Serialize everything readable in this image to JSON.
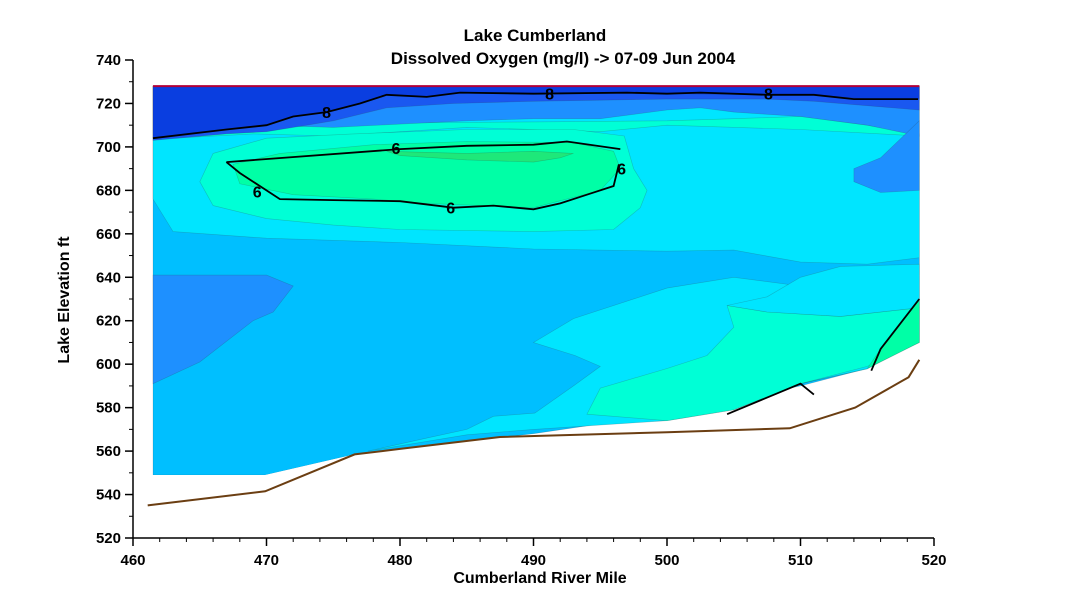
{
  "chart_data": {
    "type": "contour",
    "title": "Lake Cumberland",
    "subtitle": "Dissolved Oxygen (mg/l) -> 07-09 Jun 2004",
    "xlabel": "Cumberland River Mile",
    "ylabel": "Lake  Elevation  ft",
    "xlim": [
      460,
      520
    ],
    "ylim": [
      520,
      740
    ],
    "x_ticks": [
      "460",
      "470",
      "480",
      "490",
      "500",
      "510",
      "520"
    ],
    "y_ticks": [
      "520",
      "540",
      "560",
      "580",
      "600",
      "620",
      "640",
      "660",
      "680",
      "700",
      "720",
      "740"
    ],
    "grid": false,
    "water_surface_elevation": 728,
    "bottom_profile": [
      [
        461.1,
        535
      ],
      [
        469.9,
        541.5
      ],
      [
        476.6,
        558.5
      ],
      [
        480,
        561
      ],
      [
        487.5,
        566.5
      ],
      [
        500,
        568.7
      ],
      [
        509.2,
        570.5
      ],
      [
        514.1,
        580
      ],
      [
        518.1,
        594
      ],
      [
        518.9,
        602
      ]
    ],
    "color_levels": {
      "very_low": "#00bfff",
      "low": "#00e5ff",
      "mid": "#00ffd6",
      "mid_high": "#00ffa6",
      "high": "#1ee87a",
      "surface_2": "#1e90ff",
      "surface_1": "#1a58f0",
      "surface_top": "#0a3ee0"
    },
    "contour_lines": [
      {
        "label": "8",
        "points": [
          [
            461.5,
            704
          ],
          [
            467,
            708
          ],
          [
            470,
            710
          ],
          [
            472,
            714
          ],
          [
            474.5,
            716
          ],
          [
            477,
            720
          ],
          [
            479,
            724
          ],
          [
            482,
            723
          ],
          [
            484.5,
            725
          ],
          [
            490,
            724.5
          ],
          [
            497,
            725
          ],
          [
            500,
            724.5
          ],
          [
            502.5,
            725
          ],
          [
            507.5,
            724
          ],
          [
            511,
            724
          ],
          [
            514,
            722
          ],
          [
            518.8,
            722
          ]
        ]
      },
      {
        "label": "6",
        "points": [
          [
            467,
            693
          ],
          [
            480,
            699
          ],
          [
            485,
            700.5
          ],
          [
            490,
            701
          ],
          [
            492.5,
            702.5
          ],
          [
            496.5,
            699
          ]
        ]
      },
      {
        "label": "6",
        "points": [
          [
            467,
            693
          ],
          [
            468,
            688
          ],
          [
            470,
            680
          ],
          [
            471,
            676
          ],
          [
            475,
            675.5
          ],
          [
            480,
            675
          ],
          [
            484,
            672
          ],
          [
            487,
            673
          ],
          [
            490,
            671.3
          ],
          [
            492,
            674
          ],
          [
            494,
            678
          ],
          [
            496,
            682
          ],
          [
            496.4,
            692
          ]
        ]
      },
      {
        "label": "",
        "points": [
          [
            504.5,
            577
          ],
          [
            510,
            591
          ],
          [
            511,
            586
          ]
        ]
      },
      {
        "label": "",
        "points": [
          [
            515.3,
            597
          ],
          [
            516,
            607
          ],
          [
            518.9,
            630
          ]
        ]
      }
    ],
    "contour_labels": [
      {
        "text": "8",
        "x": 474.5,
        "y": 716
      },
      {
        "text": "8",
        "x": 491.2,
        "y": 724.5
      },
      {
        "text": "8",
        "x": 507.6,
        "y": 724.5
      },
      {
        "text": "6",
        "x": 479.7,
        "y": 699.5
      },
      {
        "text": "6",
        "x": 469.3,
        "y": 679.5
      },
      {
        "text": "6",
        "x": 483.8,
        "y": 672
      },
      {
        "text": "6",
        "x": 496.6,
        "y": 690
      }
    ]
  }
}
